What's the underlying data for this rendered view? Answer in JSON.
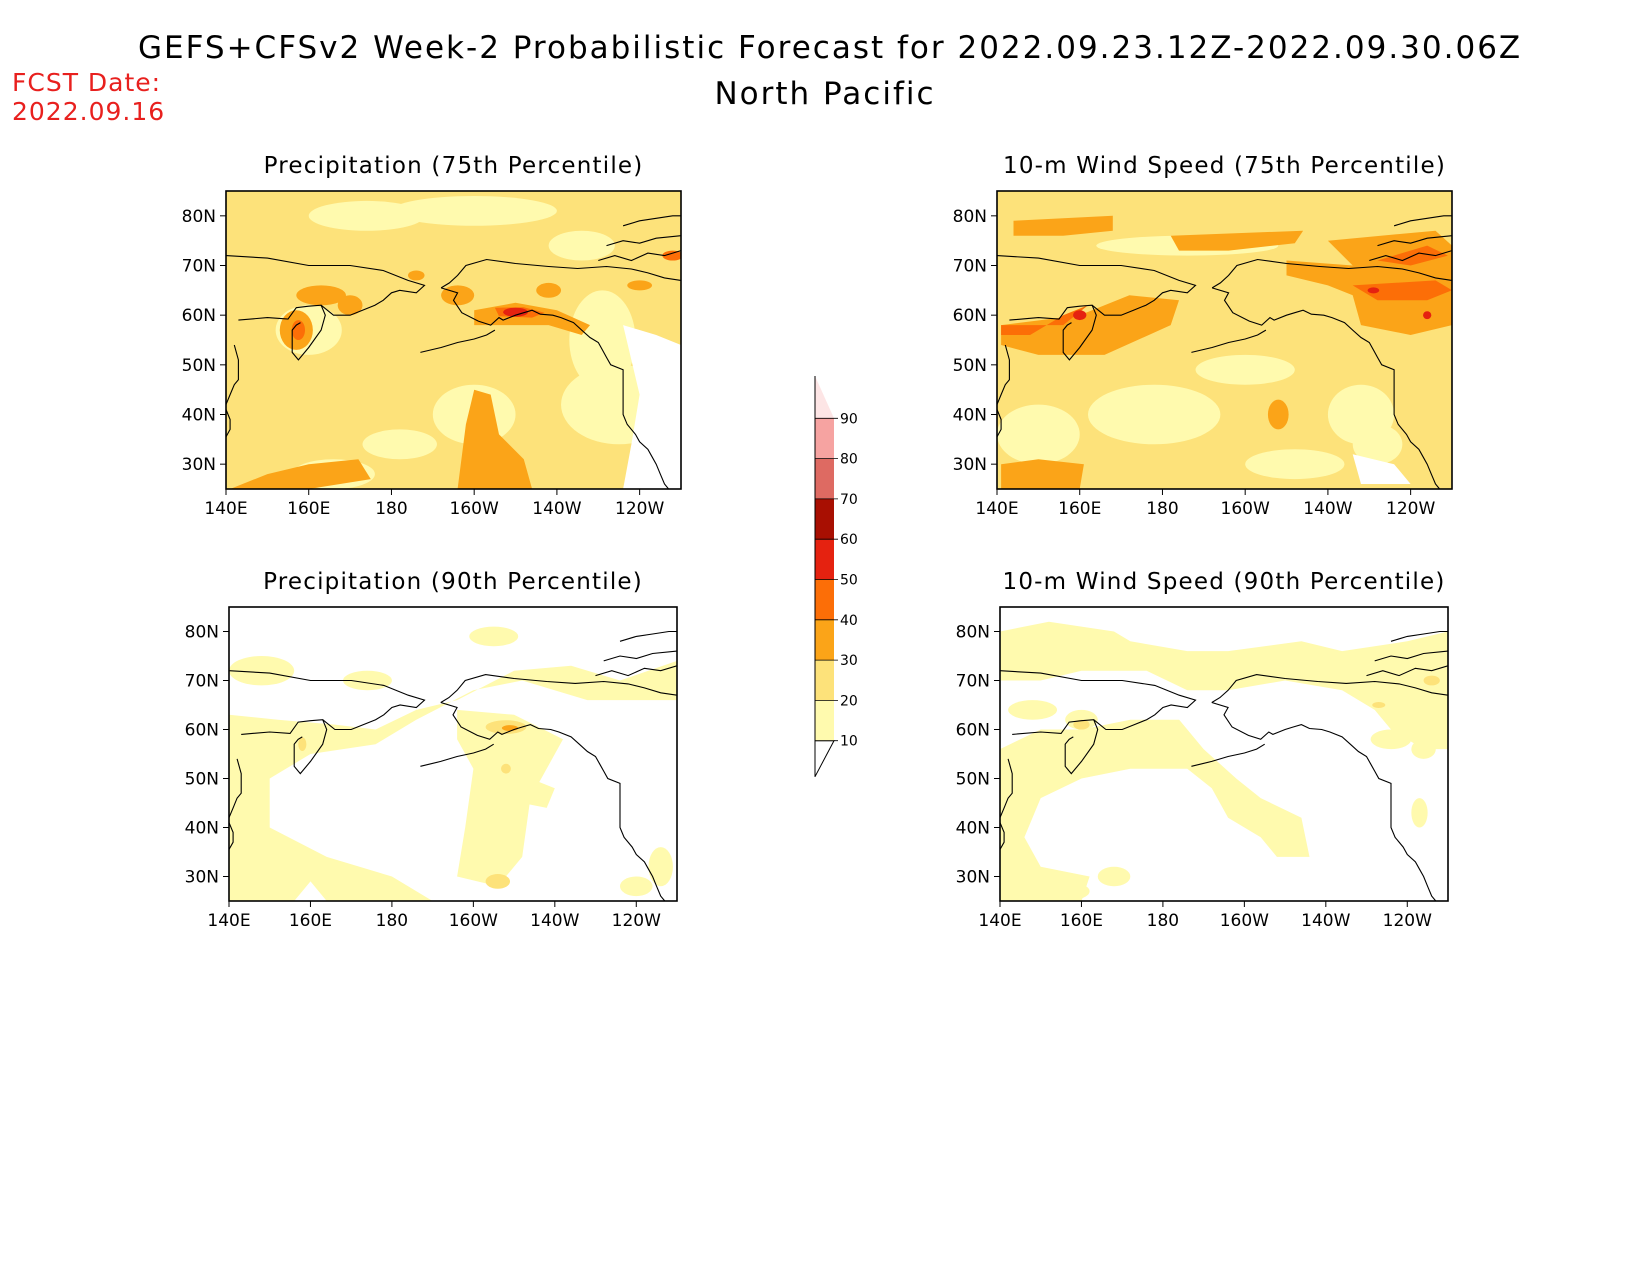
{
  "header": {
    "title": "GEFS+CFSv2 Week-2 Probabilistic Forecast for 2022.09.23.12Z-2022.09.30.06Z",
    "region": "North Pacific",
    "fcst_label": "FCST Date:",
    "fcst_date": "2022.09.16"
  },
  "axes": {
    "lat_labels": [
      "30N",
      "40N",
      "50N",
      "60N",
      "70N",
      "80N"
    ],
    "lon_labels": [
      "140E",
      "160E",
      "180",
      "160W",
      "140W",
      "120W"
    ]
  },
  "panels": [
    {
      "title": "Precipitation (75th Percentile)",
      "field": "precip75"
    },
    {
      "title": "10-m Wind Speed (75th Percentile)",
      "field": "wind75"
    },
    {
      "title": "Precipitation (90th Percentile)",
      "field": "precip90"
    },
    {
      "title": "10-m Wind Speed (90th Percentile)",
      "field": "wind90"
    }
  ],
  "colorbar": {
    "levels": [
      "10",
      "20",
      "30",
      "40",
      "50",
      "60",
      "70",
      "80",
      "90"
    ],
    "colors": [
      "#fffaae",
      "#fde27a",
      "#fba418",
      "#fc6e07",
      "#e52210",
      "#a80f02",
      "#de6a62",
      "#f6a3a1",
      "#fde5e5"
    ]
  },
  "colors": {
    "lt10": "#ffffff",
    "c10_20": "#fffaae",
    "c20_30": "#fde27a",
    "c30_40": "#fba418",
    "c40_50": "#fc6e07",
    "c50_60": "#e52210",
    "fcst_text": "#e8201e"
  }
}
